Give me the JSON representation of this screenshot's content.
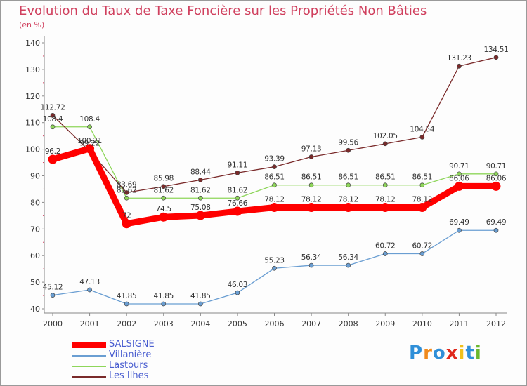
{
  "title": "Evolution du Taux de Taxe Foncière sur les Propriétés Non Bâties",
  "unit_label": "(en %)",
  "brand": {
    "letters": [
      "P",
      "r",
      "o",
      "x",
      "i",
      "t",
      "i"
    ],
    "colors": [
      "#2f8fd8",
      "#f08a1c",
      "#2f8fd8",
      "#e0281c",
      "#f0c01c",
      "#2f8fd8",
      "#6ab82c"
    ]
  },
  "chart_data": {
    "type": "line",
    "title": "Evolution du Taux de Taxe Foncière sur les Propriétés Non Bâties",
    "ylabel": "(en %)",
    "xlabel": "",
    "categories": [
      "2000",
      "2001",
      "2002",
      "2003",
      "2004",
      "2005",
      "2006",
      "2007",
      "2008",
      "2009",
      "2010",
      "2011",
      "2012"
    ],
    "ylim": [
      40,
      140
    ],
    "yticks": [
      40,
      50,
      60,
      70,
      80,
      90,
      100,
      110,
      120,
      130,
      140
    ],
    "series": [
      {
        "name": "SALSIGNE",
        "color": "#ff0000",
        "bold": true,
        "values": [
          96.2,
          100.21,
          72,
          74.5,
          75.08,
          76.66,
          78.12,
          78.12,
          78.12,
          78.12,
          78.12,
          86.06,
          86.06
        ],
        "labels": [
          "96.2",
          "100.21",
          "72",
          "74.5",
          "75.08",
          "76.66",
          "78.12",
          "78.12",
          "78.12",
          "78.12",
          "78.12",
          "86.06",
          "86.06"
        ]
      },
      {
        "name": "Villanière",
        "color": "#6a9ed2",
        "bold": false,
        "values": [
          45.12,
          47.13,
          41.85,
          41.85,
          41.85,
          46.03,
          55.23,
          56.34,
          56.34,
          60.72,
          60.72,
          69.49,
          69.49
        ],
        "labels": [
          "45.12",
          "47.13",
          "41.85",
          "41.85",
          "41.85",
          "46.03",
          "55.23",
          "56.34",
          "56.34",
          "60.72",
          "60.72",
          "69.49",
          "69.49"
        ]
      },
      {
        "name": "Lastours",
        "color": "#8ed65a",
        "bold": false,
        "values": [
          108.4,
          108.4,
          81.62,
          81.62,
          81.62,
          81.62,
          86.51,
          86.51,
          86.51,
          86.51,
          86.51,
          90.71,
          90.71
        ],
        "labels": [
          "108.4",
          "108.4",
          "81.62",
          "81.62",
          "81.62",
          "81.62",
          "86.51",
          "86.51",
          "86.51",
          "86.51",
          "86.51",
          "90.71",
          "90.71"
        ]
      },
      {
        "name": "Les Ilhes",
        "color": "#7a2a2a",
        "bold": false,
        "values": [
          112.72,
          99.22,
          83.69,
          85.98,
          88.44,
          91.11,
          93.39,
          97.13,
          99.56,
          102.05,
          104.54,
          131.23,
          134.51
        ],
        "labels": [
          "112.72",
          "99.22",
          "83.69",
          "85.98",
          "88.44",
          "91.11",
          "93.39",
          "97.13",
          "99.56",
          "102.05",
          "104.54",
          "131.23",
          "134.51"
        ]
      }
    ]
  }
}
